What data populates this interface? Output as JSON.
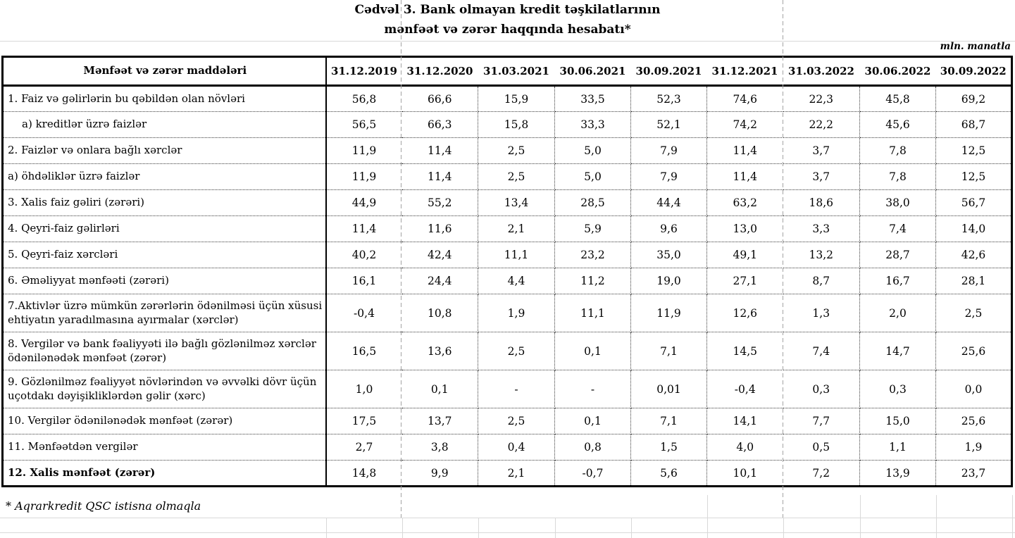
{
  "title": {
    "line1": "Cədvəl 3. Bank olmayan kredit təşkilatlarının",
    "line2": "mənfəət və zərər haqqında hesabatı*"
  },
  "unit_note": "mln. manatla",
  "footnote": "* Aqrarkredit QSC istisna olmaqla",
  "colors": {
    "text": "#000000",
    "table_border": "#000000",
    "excel_gridline": "#d9d9d9",
    "page_break_line": "#a3a3a3",
    "background": "#ffffff"
  },
  "table": {
    "header": {
      "label": "Mənfəət və zərər maddələri",
      "columns": [
        "31.12.2019",
        "31.12.2020",
        "31.03.2021",
        "30.06.2021",
        "30.09.2021",
        "31.12.2021",
        "31.03.2022",
        "30.06.2022",
        "30.09.2022"
      ]
    },
    "rows": [
      {
        "label": "1. Faiz və gəlirlərin bu qəbildən olan növləri",
        "values": [
          "56,8",
          "66,6",
          "15,9",
          "33,5",
          "52,3",
          "74,6",
          "22,3",
          "45,8",
          "69,2"
        ]
      },
      {
        "label": "a) kreditlər üzrə faizlər",
        "indent": true,
        "values": [
          "56,5",
          "66,3",
          "15,8",
          "33,3",
          "52,1",
          "74,2",
          "22,2",
          "45,6",
          "68,7"
        ]
      },
      {
        "label": "2. Faizlər və onlara bağlı xərclər",
        "values": [
          "11,9",
          "11,4",
          "2,5",
          "5,0",
          "7,9",
          "11,4",
          "3,7",
          "7,8",
          "12,5"
        ]
      },
      {
        "label": "a) öhdəliklər üzrə faizlər",
        "values": [
          "11,9",
          "11,4",
          "2,5",
          "5,0",
          "7,9",
          "11,4",
          "3,7",
          "7,8",
          "12,5"
        ]
      },
      {
        "label": "3. Xalis faiz gəliri (zərəri)",
        "values": [
          "44,9",
          "55,2",
          "13,4",
          "28,5",
          "44,4",
          "63,2",
          "18,6",
          "38,0",
          "56,7"
        ]
      },
      {
        "label": "4. Qeyri-faiz gəlirləri",
        "values": [
          "11,4",
          "11,6",
          "2,1",
          "5,9",
          "9,6",
          "13,0",
          "3,3",
          "7,4",
          "14,0"
        ]
      },
      {
        "label": "5. Qeyri-faiz xərcləri",
        "values": [
          "40,2",
          "42,4",
          "11,1",
          "23,2",
          "35,0",
          "49,1",
          "13,2",
          "28,7",
          "42,6"
        ]
      },
      {
        "label": "6. Əməliyyat mənfəəti (zərəri)",
        "values": [
          "16,1",
          "24,4",
          "4,4",
          "11,2",
          "19,0",
          "27,1",
          "8,7",
          "16,7",
          "28,1"
        ]
      },
      {
        "label": "7.Aktivlər üzrə mümkün zərərlərin ödənilməsi üçün xüsusi ehtiyatın yaradılmasına ayırmalar (xərclər)",
        "tall": true,
        "values": [
          "-0,4",
          "10,8",
          "1,9",
          "11,1",
          "11,9",
          "12,6",
          "1,3",
          "2,0",
          "2,5"
        ]
      },
      {
        "label": "8. Vergilər və bank fəaliyyəti ilə bağlı gözlənilməz xərclər ödənilənədək mənfəət (zərər)",
        "tall": true,
        "values": [
          "16,5",
          "13,6",
          "2,5",
          "0,1",
          "7,1",
          "14,5",
          "7,4",
          "14,7",
          "25,6"
        ]
      },
      {
        "label": "9. Gözlənilməz fəaliyyət növlərindən və əvvəlki dövr üçün uçotdakı dəyişikliklərdən gəlir (xərc)",
        "tall": true,
        "values": [
          "1,0",
          "0,1",
          "-",
          "-",
          "0,01",
          "-0,4",
          "0,3",
          "0,3",
          "0,0"
        ]
      },
      {
        "label": "10. Vergilər ödənilənədək mənfəət (zərər)",
        "values": [
          "17,5",
          "13,7",
          "2,5",
          "0,1",
          "7,1",
          "14,1",
          "7,7",
          "15,0",
          "25,6"
        ]
      },
      {
        "label": "11. Mənfəətdən vergilər",
        "values": [
          "2,7",
          "3,8",
          "0,4",
          "0,8",
          "1,5",
          "4,0",
          "0,5",
          "1,1",
          "1,9"
        ]
      },
      {
        "label": "12. Xalis mənfəət (zərər)",
        "bold": true,
        "values": [
          "14,8",
          "9,9",
          "2,1",
          "-0,7",
          "5,6",
          "10,1",
          "7,2",
          "13,9",
          "23,7"
        ]
      }
    ]
  }
}
